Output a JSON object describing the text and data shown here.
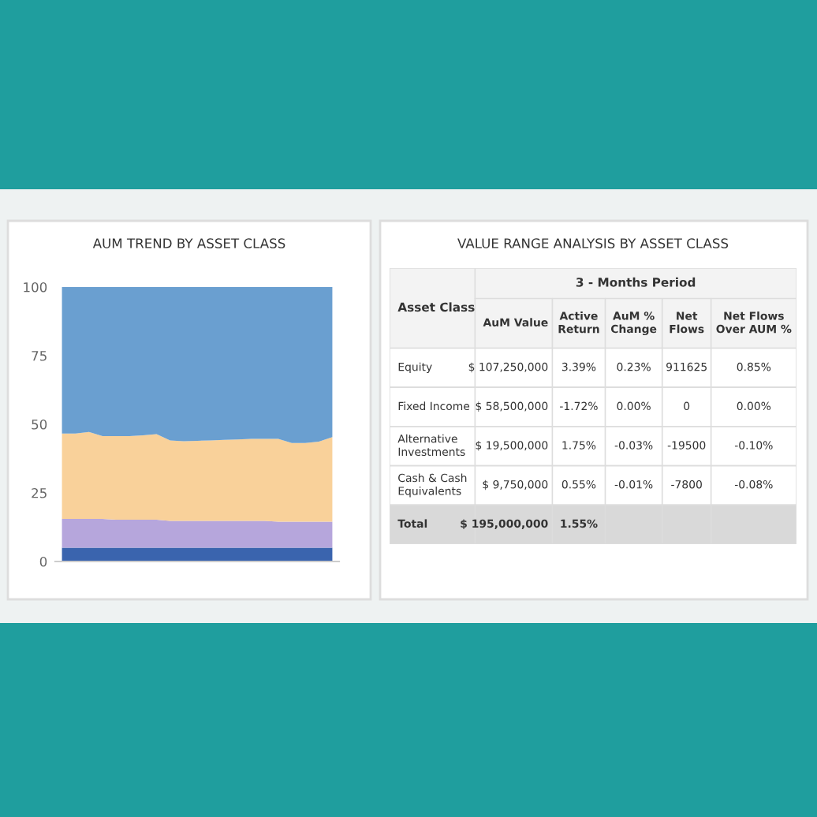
{
  "chart_data": [
    {
      "type": "area",
      "stacked": true,
      "title": "AUM TREND BY ASSET CLASS",
      "categories": [
        null,
        null,
        null,
        null,
        null,
        null,
        null,
        null,
        null,
        null,
        null,
        null,
        null,
        null,
        null,
        null,
        null,
        null,
        null,
        null,
        null
      ],
      "series": [
        {
          "color": "#3a64ae",
          "values": [
            5.0,
            5.0,
            5.0,
            5.0,
            5.0,
            5.0,
            5.0,
            5.0,
            5.0,
            5.0,
            5.0,
            5.0,
            5.0,
            5.0,
            5.0,
            5.0,
            5.0,
            5.0,
            5.0,
            5.0,
            5.0
          ]
        },
        {
          "color": "#b6a6dc",
          "values": [
            10.5,
            10.5,
            10.5,
            10.5,
            10.2,
            10.2,
            10.2,
            10.2,
            9.8,
            9.8,
            9.8,
            9.8,
            9.8,
            9.8,
            9.8,
            9.8,
            9.5,
            9.5,
            9.5,
            9.5,
            9.5
          ]
        },
        {
          "color": "#f9d19a",
          "values": [
            31.1,
            31.1,
            31.7,
            30.2,
            30.5,
            30.5,
            30.8,
            31.2,
            29.3,
            29.0,
            29.2,
            29.3,
            29.5,
            29.7,
            29.9,
            29.9,
            30.2,
            28.7,
            28.7,
            29.2,
            30.8
          ]
        },
        {
          "color": "#6a9fd0",
          "values": [
            53.4,
            53.4,
            52.8,
            54.3,
            54.3,
            54.3,
            54.0,
            53.6,
            55.9,
            56.2,
            56.0,
            55.9,
            55.7,
            55.5,
            55.3,
            55.3,
            55.3,
            56.8,
            56.8,
            56.3,
            54.7
          ]
        }
      ],
      "ylim": [
        0,
        100
      ],
      "yticks": [
        0,
        25,
        50,
        75,
        100
      ],
      "tick_labels": "y",
      "grid": false,
      "legend": false
    },
    {
      "type": "other",
      "title": "VALUE RANGE ANALYSIS BY ASSET CLASS",
      "subtitle": "3 - Months Period",
      "categories": [
        "Asset Class",
        "AuM Value",
        "Active Return",
        "AuM % Change",
        "Net Flows",
        "Net Flows Over AUM %"
      ],
      "y_categories": [
        "Equity",
        "Fixed Income",
        "Alternative Investments",
        "Cash & Cash Equivalents",
        "Total"
      ],
      "cell_labels": [
        [
          "$ 107,250,000",
          "3.39%",
          "0.23%",
          "911625",
          "0.85%"
        ],
        [
          "$ 58,500,000",
          "-1.72%",
          "0.00%",
          "0",
          "0.00%"
        ],
        [
          "$ 19,500,000",
          "1.75%",
          "-0.03%",
          "-19500",
          "-0.10%"
        ],
        [
          "$ 9,750,000",
          "0.55%",
          "-0.01%",
          "-7800",
          "-0.08%"
        ],
        [
          "$ 195,000,000",
          "1.55%",
          null,
          null,
          null
        ]
      ]
    }
  ]
}
